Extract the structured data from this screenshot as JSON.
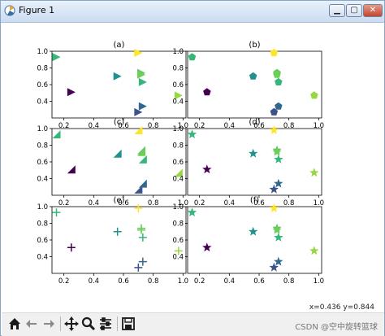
{
  "window": {
    "title": "Figure 1"
  },
  "status": {
    "coords": "x=0.436 y=0.844"
  },
  "watermark": "CSDN @空中旋转篮球",
  "toolbar": {
    "buttons": [
      {
        "name": "home-button",
        "icon": "home-icon"
      },
      {
        "name": "back-button",
        "icon": "arrow-left-icon"
      },
      {
        "name": "forward-button",
        "icon": "arrow-right-icon"
      },
      {
        "name": "pan-button",
        "icon": "move-icon"
      },
      {
        "name": "zoom-button",
        "icon": "magnifier-icon"
      },
      {
        "name": "configure-subplots-button",
        "icon": "sliders-icon"
      },
      {
        "name": "save-button",
        "icon": "floppy-disk-icon"
      }
    ]
  },
  "chart_data": [
    {
      "type": "scatter",
      "title": "(a)",
      "marker": "right-triangle",
      "xlim": [
        0.12,
        1.02
      ],
      "ylim": [
        0.2,
        1.0
      ],
      "xticks": [
        "0.2",
        "0.4",
        "0.6",
        "0.8",
        "1.0"
      ],
      "yticks": [
        "0.4",
        "0.6",
        "0.8",
        "1.0"
      ],
      "x": [
        0.15,
        0.25,
        0.56,
        0.7,
        0.72,
        0.72,
        0.73,
        0.7,
        0.73,
        0.97
      ],
      "y": [
        0.93,
        0.51,
        0.7,
        0.98,
        0.74,
        0.72,
        0.63,
        0.27,
        0.34,
        0.47
      ],
      "colors": [
        "#35b779",
        "#440154",
        "#21918c",
        "#fde725",
        "#5ec962",
        "#6ece58",
        "#35b779",
        "#3b528b",
        "#31688e",
        "#95d840"
      ]
    },
    {
      "type": "scatter",
      "title": "(b)",
      "marker": "pentagon",
      "xlim": [
        0.12,
        1.02
      ],
      "ylim": [
        0.2,
        1.0
      ],
      "xticks": [
        "0.2",
        "0.4",
        "0.6",
        "0.8",
        "1.0"
      ],
      "yticks": [
        "0.4",
        "0.6",
        "0.8",
        "1.0"
      ],
      "x": [
        0.15,
        0.25,
        0.56,
        0.7,
        0.72,
        0.72,
        0.73,
        0.7,
        0.73,
        0.97
      ],
      "y": [
        0.93,
        0.51,
        0.7,
        0.98,
        0.74,
        0.72,
        0.63,
        0.27,
        0.34,
        0.47
      ],
      "colors": [
        "#35b779",
        "#440154",
        "#21918c",
        "#fde725",
        "#5ec962",
        "#6ece58",
        "#35b779",
        "#3b528b",
        "#31688e",
        "#95d840"
      ]
    },
    {
      "type": "scatter",
      "title": "(c)",
      "marker": "lower-right-triangle",
      "xlim": [
        0.12,
        1.02
      ],
      "ylim": [
        0.2,
        1.0
      ],
      "xticks": [
        "0.2",
        "0.4",
        "0.6",
        "0.8",
        "1.0"
      ],
      "yticks": [
        "0.4",
        "0.6",
        "0.8",
        "1.0"
      ],
      "x": [
        0.15,
        0.25,
        0.56,
        0.7,
        0.72,
        0.72,
        0.73,
        0.7,
        0.73,
        0.97
      ],
      "y": [
        0.93,
        0.51,
        0.7,
        0.98,
        0.74,
        0.72,
        0.63,
        0.27,
        0.34,
        0.47
      ],
      "colors": [
        "#35b779",
        "#440154",
        "#21918c",
        "#fde725",
        "#5ec962",
        "#6ece58",
        "#35b779",
        "#3b528b",
        "#31688e",
        "#95d840"
      ]
    },
    {
      "type": "scatter",
      "title": "(d)",
      "marker": "star",
      "xlim": [
        0.12,
        1.02
      ],
      "ylim": [
        0.2,
        1.0
      ],
      "xticks": [
        "0.2",
        "0.4",
        "0.6",
        "0.8",
        "1.0"
      ],
      "yticks": [
        "0.4",
        "0.6",
        "0.8",
        "1.0"
      ],
      "x": [
        0.15,
        0.25,
        0.56,
        0.7,
        0.72,
        0.72,
        0.73,
        0.7,
        0.73,
        0.97
      ],
      "y": [
        0.93,
        0.51,
        0.7,
        0.98,
        0.74,
        0.72,
        0.63,
        0.27,
        0.34,
        0.47
      ],
      "colors": [
        "#35b779",
        "#440154",
        "#21918c",
        "#fde725",
        "#5ec962",
        "#6ece58",
        "#35b779",
        "#3b528b",
        "#31688e",
        "#95d840"
      ]
    },
    {
      "type": "scatter",
      "title": "(e)",
      "marker": "plus",
      "xlim": [
        0.12,
        1.02
      ],
      "ylim": [
        0.2,
        1.0
      ],
      "xticks": [
        "0.2",
        "0.4",
        "0.6",
        "0.8",
        "1.0"
      ],
      "yticks": [
        "0.4",
        "0.6",
        "0.8",
        "1.0"
      ],
      "x": [
        0.15,
        0.25,
        0.56,
        0.7,
        0.72,
        0.72,
        0.73,
        0.7,
        0.73,
        0.97
      ],
      "y": [
        0.93,
        0.51,
        0.7,
        0.98,
        0.74,
        0.72,
        0.63,
        0.27,
        0.34,
        0.47
      ],
      "colors": [
        "#35b779",
        "#440154",
        "#21918c",
        "#fde725",
        "#5ec962",
        "#6ece58",
        "#35b779",
        "#3b528b",
        "#31688e",
        "#95d840"
      ]
    },
    {
      "type": "scatter",
      "title": "(f)",
      "marker": "star",
      "xlim": [
        0.12,
        1.02
      ],
      "ylim": [
        0.2,
        1.0
      ],
      "xticks": [
        "0.2",
        "0.4",
        "0.6",
        "0.8",
        "1.0"
      ],
      "yticks": [
        "0.4",
        "0.6",
        "0.8",
        "1.0"
      ],
      "x": [
        0.15,
        0.25,
        0.56,
        0.7,
        0.72,
        0.72,
        0.73,
        0.7,
        0.73,
        0.97
      ],
      "y": [
        0.93,
        0.51,
        0.7,
        0.98,
        0.74,
        0.72,
        0.63,
        0.27,
        0.34,
        0.47
      ],
      "colors": [
        "#35b779",
        "#440154",
        "#21918c",
        "#fde725",
        "#5ec962",
        "#6ece58",
        "#35b779",
        "#3b528b",
        "#31688e",
        "#95d840"
      ]
    }
  ]
}
